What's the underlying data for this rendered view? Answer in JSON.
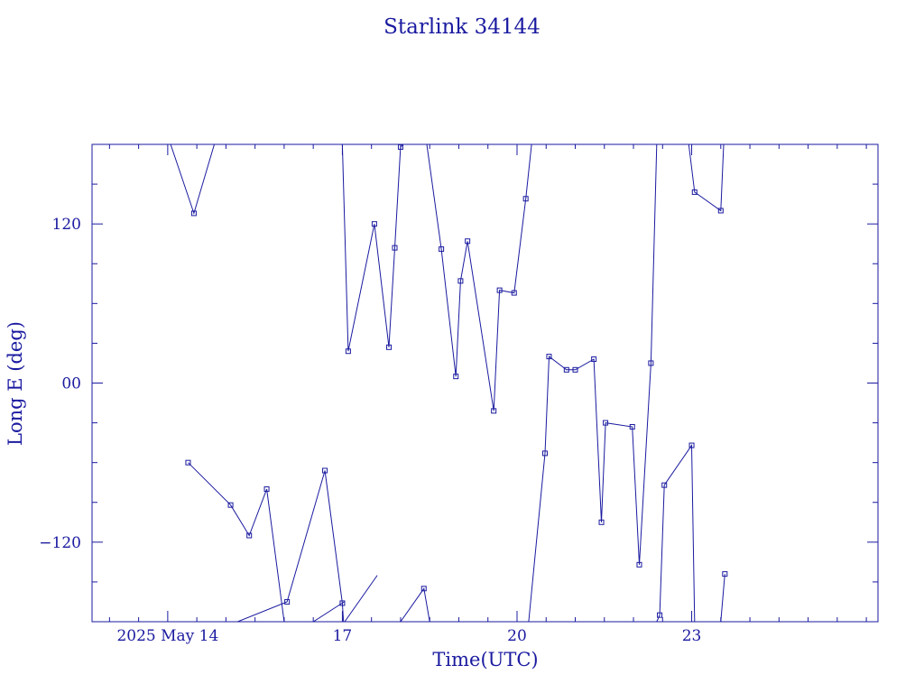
{
  "chart_data": {
    "type": "line",
    "title": "Starlink 34144",
    "xlabel": "Time(UTC)",
    "ylabel": "Long E (deg)",
    "x_tick_labels": [
      {
        "label": "2025 May 14",
        "day": 14
      },
      {
        "label": "17",
        "day": 17
      },
      {
        "label": "20",
        "day": 20
      },
      {
        "label": "23",
        "day": 23
      }
    ],
    "y_tick_labels": [
      "120",
      "00",
      "−120"
    ],
    "xlim_day": [
      12.7,
      26.2
    ],
    "ylim": [
      -180,
      180
    ],
    "y_major_step": 120,
    "y_minor_step": 30,
    "x_minor_step_days": 0.5,
    "grid": false,
    "colors": {
      "axis": "#1a1aa0",
      "line": "#1a1aa0",
      "title": "#1a1aa0"
    },
    "series": [
      {
        "x_day": [
          14.35,
          15.08,
          15.4,
          15.7,
          16.0
        ],
        "y": [
          -60,
          -92,
          -115,
          -80,
          -180
        ],
        "marked": [
          true,
          true,
          true,
          true,
          false
        ]
      },
      {
        "x_day": [
          16.5,
          17.03
        ],
        "y": [
          -180,
          -165
        ],
        "marked": [
          false,
          false
        ]
      },
      {
        "x_day": [
          17.04,
          17.6
        ],
        "y": [
          -180,
          -145
        ],
        "marked": [
          false,
          false
        ]
      },
      {
        "x_day": [
          14.0,
          14.05,
          14.45,
          14.8
        ],
        "y": [
          180,
          180,
          128,
          180
        ],
        "marked": [
          false,
          false,
          true,
          false
        ]
      },
      {
        "x_day": [
          15.2,
          16.05,
          16.7,
          17.0,
          17.02
        ],
        "y": [
          -180,
          -165,
          -66,
          -166,
          -180
        ],
        "marked": [
          false,
          true,
          true,
          true,
          false
        ]
      },
      {
        "x_day": [
          17.0,
          17.1,
          17.55,
          17.8,
          17.9,
          18.0,
          18.05
        ],
        "y": [
          180,
          24,
          120,
          27,
          102,
          178,
          180
        ],
        "marked": [
          false,
          true,
          true,
          true,
          true,
          true,
          false
        ]
      },
      {
        "x_day": [
          18.0,
          18.4,
          18.5
        ],
        "y": [
          -180,
          -155,
          -180
        ],
        "marked": [
          false,
          true,
          false
        ]
      },
      {
        "x_day": [
          18.45,
          18.7,
          18.95,
          19.03,
          19.15,
          19.6,
          19.7,
          19.95,
          20.15,
          20.25
        ],
        "y": [
          180,
          101,
          5,
          77,
          107,
          -21,
          70,
          68,
          139,
          180
        ],
        "marked": [
          false,
          true,
          true,
          true,
          true,
          true,
          true,
          true,
          true,
          false
        ]
      },
      {
        "x_day": [
          20.2,
          20.48,
          20.55,
          20.85,
          21.0,
          21.32,
          21.45,
          21.52,
          21.98,
          22.1,
          22.3,
          22.4
        ],
        "y": [
          -180,
          -53,
          20,
          10,
          10,
          18,
          -105,
          -30,
          -33,
          -137,
          15,
          180
        ],
        "marked": [
          false,
          true,
          true,
          true,
          true,
          true,
          true,
          true,
          true,
          true,
          true,
          false
        ]
      },
      {
        "x_day": [
          22.4,
          22.45,
          22.53,
          23.0,
          23.05
        ],
        "y": [
          -180,
          -175,
          -77,
          -47,
          -180
        ],
        "marked": [
          false,
          true,
          true,
          true,
          false
        ]
      },
      {
        "x_day": [
          22.95,
          23.05,
          23.5,
          23.55
        ],
        "y": [
          180,
          144,
          130,
          180
        ],
        "marked": [
          false,
          true,
          true,
          false
        ]
      },
      {
        "x_day": [
          23.5,
          23.57
        ],
        "y": [
          -180,
          -144
        ],
        "marked": [
          false,
          true
        ]
      }
    ]
  }
}
